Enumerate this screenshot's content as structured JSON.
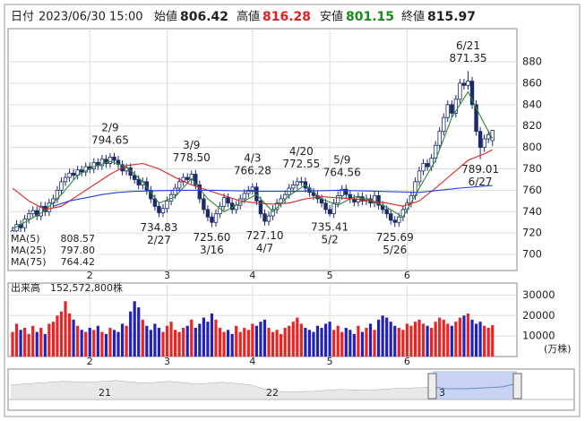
{
  "header": {
    "date_label": "日付",
    "date": "2023/06/30 15:00",
    "open_label": "始値",
    "open": "806.42",
    "high_label": "高値",
    "high": "816.28",
    "low_label": "安値",
    "low": "801.15",
    "close_label": "終値",
    "close": "815.97"
  },
  "chart_data": {
    "type": "candlestick",
    "up_color": "#ffffff",
    "down_color": "#1a2a6c",
    "open": [
      718,
      722,
      728,
      725,
      733,
      738,
      741,
      736,
      745,
      740,
      748,
      752,
      760,
      768,
      772,
      776,
      774,
      779,
      777,
      782,
      780,
      786,
      783,
      789,
      785,
      791,
      788,
      784,
      778,
      781,
      774,
      770,
      765,
      768,
      760,
      752,
      745,
      739,
      743,
      750,
      756,
      762,
      768,
      772,
      770,
      775,
      765,
      752,
      742,
      735,
      730,
      738,
      745,
      753,
      748,
      742,
      746,
      752,
      757,
      760,
      763,
      750,
      738,
      731,
      736,
      742,
      748,
      752,
      756,
      762,
      765,
      768,
      768,
      762,
      758,
      755,
      752,
      748,
      742,
      738,
      748,
      755,
      761,
      756,
      752,
      749,
      754,
      750,
      752,
      748,
      755,
      746,
      742,
      738,
      732,
      730,
      735,
      742,
      748,
      755,
      768,
      778,
      785,
      782,
      790,
      802,
      815,
      828,
      840,
      832,
      845,
      860,
      858,
      862,
      840,
      815,
      800,
      808,
      806.42
    ],
    "high": [
      726,
      732,
      732,
      737,
      742,
      745,
      745,
      749,
      749,
      752,
      756,
      764,
      772,
      776,
      780,
      780,
      783,
      783,
      786,
      786,
      790,
      790,
      793,
      793,
      794.65,
      795,
      792,
      788,
      785,
      785,
      778,
      774,
      772,
      772,
      764,
      756,
      749,
      747,
      754,
      760,
      766,
      772,
      776,
      776,
      778.5,
      779,
      769,
      756,
      746,
      739,
      742,
      749,
      757,
      757,
      752,
      750,
      756,
      761,
      764,
      766.28,
      767,
      754,
      742,
      740,
      746,
      752,
      756,
      760,
      766,
      769,
      772,
      772.55,
      772,
      766,
      762,
      759,
      756,
      752,
      746,
      752,
      759,
      764.56,
      765,
      760,
      756,
      758,
      758,
      756,
      756,
      759,
      759,
      750,
      746,
      742,
      736,
      739,
      746,
      752,
      759,
      772,
      782,
      789,
      789,
      794,
      806,
      819,
      832,
      844,
      844,
      849,
      864,
      864,
      871.35,
      866,
      844,
      819,
      812,
      816,
      816.28
    ],
    "low": [
      714,
      718,
      721,
      721,
      729,
      734,
      732,
      732,
      736,
      736,
      744,
      748,
      756,
      764,
      768,
      770,
      770,
      773,
      773,
      776,
      776,
      779,
      779,
      781,
      781,
      784,
      780,
      774,
      774,
      770,
      766,
      761,
      761,
      756,
      748,
      741,
      734.83,
      735,
      739,
      746,
      752,
      758,
      764,
      766,
      766,
      761,
      748,
      738,
      731,
      725.6,
      726,
      734,
      741,
      744,
      738,
      738,
      742,
      748,
      753,
      756,
      746,
      734,
      727.1,
      727,
      732,
      738,
      744,
      748,
      752,
      758,
      761,
      764,
      758,
      754,
      751,
      748,
      744,
      738,
      735.41,
      734,
      744,
      751,
      752,
      748,
      745,
      745,
      746,
      746,
      744,
      744,
      742,
      738,
      734,
      728,
      725.69,
      726,
      731,
      738,
      744,
      751,
      764,
      774,
      778,
      778,
      786,
      798,
      811,
      824,
      828,
      828,
      841,
      854,
      854,
      836,
      811,
      789.01,
      796,
      804,
      801.15
    ],
    "close": [
      722,
      728,
      725,
      733,
      738,
      741,
      736,
      745,
      740,
      748,
      752,
      760,
      768,
      772,
      776,
      774,
      779,
      777,
      782,
      780,
      786,
      783,
      789,
      785,
      791,
      788,
      784,
      778,
      781,
      774,
      770,
      765,
      768,
      760,
      752,
      745,
      739,
      743,
      750,
      756,
      762,
      768,
      772,
      770,
      775,
      765,
      752,
      742,
      735,
      730,
      738,
      745,
      753,
      748,
      742,
      746,
      752,
      757,
      760,
      763,
      750,
      738,
      731,
      736,
      742,
      748,
      752,
      756,
      762,
      765,
      768,
      768,
      762,
      758,
      755,
      752,
      748,
      742,
      738,
      748,
      755,
      761,
      756,
      752,
      749,
      754,
      750,
      752,
      748,
      755,
      746,
      742,
      738,
      732,
      730,
      735,
      742,
      748,
      755,
      768,
      778,
      785,
      782,
      790,
      802,
      815,
      828,
      840,
      832,
      845,
      860,
      858,
      862,
      840,
      815,
      800,
      808,
      812,
      815.97
    ],
    "ylim": [
      685,
      911
    ],
    "yticks": [
      700,
      720,
      740,
      760,
      780,
      800,
      820,
      840,
      860,
      880
    ],
    "grid": true,
    "xticks": [
      {
        "value": 19,
        "label": "2"
      },
      {
        "value": 38,
        "label": "3"
      },
      {
        "value": 59,
        "label": "4"
      },
      {
        "value": 78,
        "label": "5"
      },
      {
        "value": 97,
        "label": "6"
      }
    ],
    "ma_series": [
      {
        "name": "MA(5)",
        "legend_value": "808.57",
        "color": "#2e8b2e",
        "x": [
          0,
          4,
          8,
          12,
          16,
          20,
          24,
          28,
          32,
          36,
          40,
          44,
          48,
          52,
          56,
          60,
          64,
          68,
          72,
          76,
          80,
          84,
          88,
          92,
          96,
          100,
          104,
          108,
          112,
          116,
          118
        ],
        "values": [
          724,
          732,
          741,
          756,
          774,
          782,
          787,
          782,
          768,
          748,
          754,
          771,
          752,
          740,
          748,
          756,
          740,
          755,
          765,
          752,
          746,
          754,
          751,
          744,
          735,
          762,
          788,
          828,
          852,
          822,
          808.57
        ]
      },
      {
        "name": "MA(25)",
        "legend_value": "797.80",
        "color": "#e02020",
        "x": [
          0,
          4,
          8,
          12,
          16,
          20,
          24,
          28,
          32,
          36,
          40,
          44,
          48,
          52,
          56,
          60,
          64,
          68,
          72,
          76,
          80,
          84,
          88,
          92,
          96,
          100,
          104,
          108,
          112,
          116,
          118
        ],
        "values": [
          762,
          750,
          742,
          745,
          755,
          765,
          775,
          783,
          785,
          780,
          772,
          765,
          760,
          755,
          750,
          748,
          747,
          748,
          752,
          754,
          753,
          752,
          750,
          748,
          745,
          750,
          762,
          775,
          788,
          794,
          797.8
        ]
      },
      {
        "name": "MA(75)",
        "legend_value": "764.42",
        "color": "#2040e0",
        "x": [
          10,
          14,
          18,
          22,
          26,
          30,
          40,
          50,
          60,
          70,
          80,
          90,
          100,
          110,
          118
        ],
        "values": [
          745,
          750,
          753,
          756,
          758,
          759,
          760,
          760,
          759,
          759,
          760,
          759,
          758,
          762,
          764.42
        ]
      }
    ],
    "annotations": [
      {
        "date": "2/9",
        "price": "794.65",
        "at": 24,
        "pos": "above"
      },
      {
        "date": "2/27",
        "price": "734.83",
        "at": 36,
        "pos": "below"
      },
      {
        "date": "3/9",
        "price": "778.50",
        "at": 44,
        "pos": "above"
      },
      {
        "date": "3/16",
        "price": "725.60",
        "at": 49,
        "pos": "below"
      },
      {
        "date": "4/3",
        "price": "766.28",
        "at": 59,
        "pos": "above"
      },
      {
        "date": "4/7",
        "price": "727.10",
        "at": 62,
        "pos": "below"
      },
      {
        "date": "4/20",
        "price": "772.55",
        "at": 71,
        "pos": "above"
      },
      {
        "date": "5/2",
        "price": "735.41",
        "at": 78,
        "pos": "below"
      },
      {
        "date": "5/9",
        "price": "764.56",
        "at": 81,
        "pos": "above"
      },
      {
        "date": "5/26",
        "price": "725.69",
        "at": 94,
        "pos": "below"
      },
      {
        "date": "6/21",
        "price": "871.35",
        "at": 112,
        "pos": "above"
      },
      {
        "date": "6/27",
        "price": "789.01",
        "at": 115,
        "pos": "below"
      }
    ],
    "volume": {
      "title": "出来高",
      "total": "152,572,800株",
      "unit": "(万株)",
      "up_color": "#ee2222",
      "down_color": "#2222bb",
      "ylim": [
        0,
        35000
      ],
      "yticks": [
        10000,
        20000,
        30000
      ],
      "values": [
        12000,
        16000,
        13000,
        14000,
        11000,
        15000,
        12000,
        14000,
        11000,
        16000,
        17000,
        20000,
        22000,
        27000,
        21000,
        18000,
        15000,
        13000,
        12000,
        14000,
        13000,
        15000,
        12000,
        11000,
        14000,
        13000,
        12000,
        16000,
        15000,
        22000,
        27000,
        24000,
        18000,
        15000,
        13000,
        16000,
        14000,
        12000,
        15000,
        17000,
        13000,
        12000,
        14000,
        15000,
        18000,
        14000,
        16000,
        19000,
        17000,
        21000,
        18000,
        14000,
        12000,
        13000,
        11000,
        15000,
        12000,
        14000,
        13000,
        16000,
        15000,
        17000,
        18000,
        14000,
        12000,
        13000,
        11000,
        14000,
        15000,
        17000,
        19000,
        16000,
        14000,
        13000,
        12000,
        15000,
        14000,
        16000,
        17000,
        13000,
        15000,
        12000,
        14000,
        13000,
        11000,
        15000,
        12000,
        14000,
        16000,
        13000,
        18000,
        20000,
        19000,
        17000,
        15000,
        14000,
        13000,
        16000,
        15000,
        17000,
        18000,
        16000,
        15000,
        14000,
        17000,
        19000,
        18000,
        16000,
        15000,
        17000,
        19000,
        20000,
        21000,
        18000,
        16000,
        17000,
        15000,
        14000,
        15257.28
      ]
    }
  },
  "navigator": {
    "labels": [
      "21",
      "22",
      "3"
    ]
  }
}
